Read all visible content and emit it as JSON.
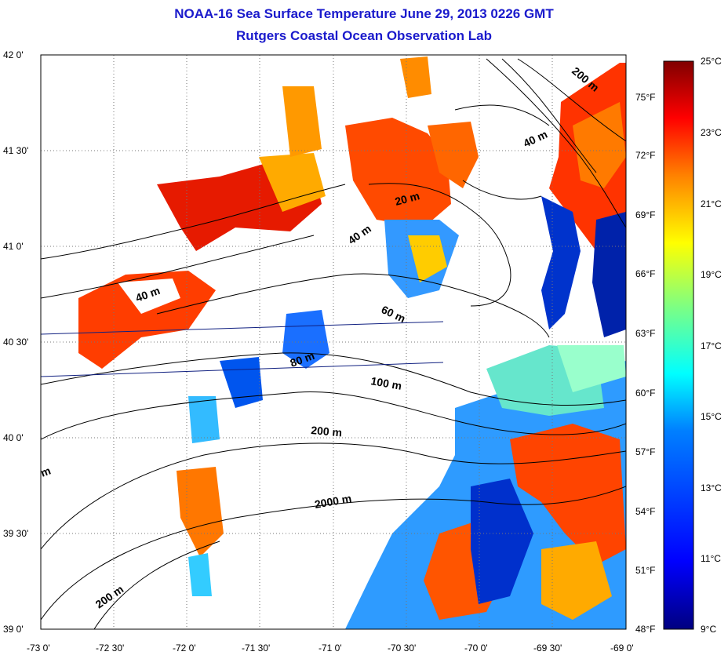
{
  "title": {
    "line1": "NOAA-16 Sea Surface Temperature June 29, 2013 0226 GMT",
    "line2": "Rutgers Coastal Ocean Observation Lab"
  },
  "axes": {
    "lat_labels": [
      "42 0'",
      "41 30'",
      "41 0'",
      "40 30'",
      "40 0'",
      "39 30'",
      "39 0'"
    ],
    "lon_labels": [
      "-73 0'",
      "-72 30'",
      "-72 0'",
      "-71 30'",
      "-71 0'",
      "-70 30'",
      "-70 0'",
      "-69 30'",
      "-69 0'"
    ]
  },
  "colorbar": {
    "celsius": [
      "25°C",
      "23°C",
      "21°C",
      "19°C",
      "17°C",
      "15°C",
      "13°C",
      "11°C",
      "9°C"
    ],
    "fahrenheit": [
      "75°F",
      "72°F",
      "69°F",
      "66°F",
      "63°F",
      "60°F",
      "57°F",
      "54°F",
      "51°F",
      "48°F"
    ],
    "colors": [
      "#800000",
      "#ff0000",
      "#ff8000",
      "#ffff00",
      "#80ff80",
      "#00ffff",
      "#0080ff",
      "#0000ff",
      "#000080"
    ]
  },
  "contour_labels": [
    "200 m",
    "40 m",
    "20 m",
    "40 m",
    "40 m",
    "60 m",
    "80 m",
    "100 m",
    "200 m",
    "2000 m",
    "m",
    "200 m"
  ]
}
